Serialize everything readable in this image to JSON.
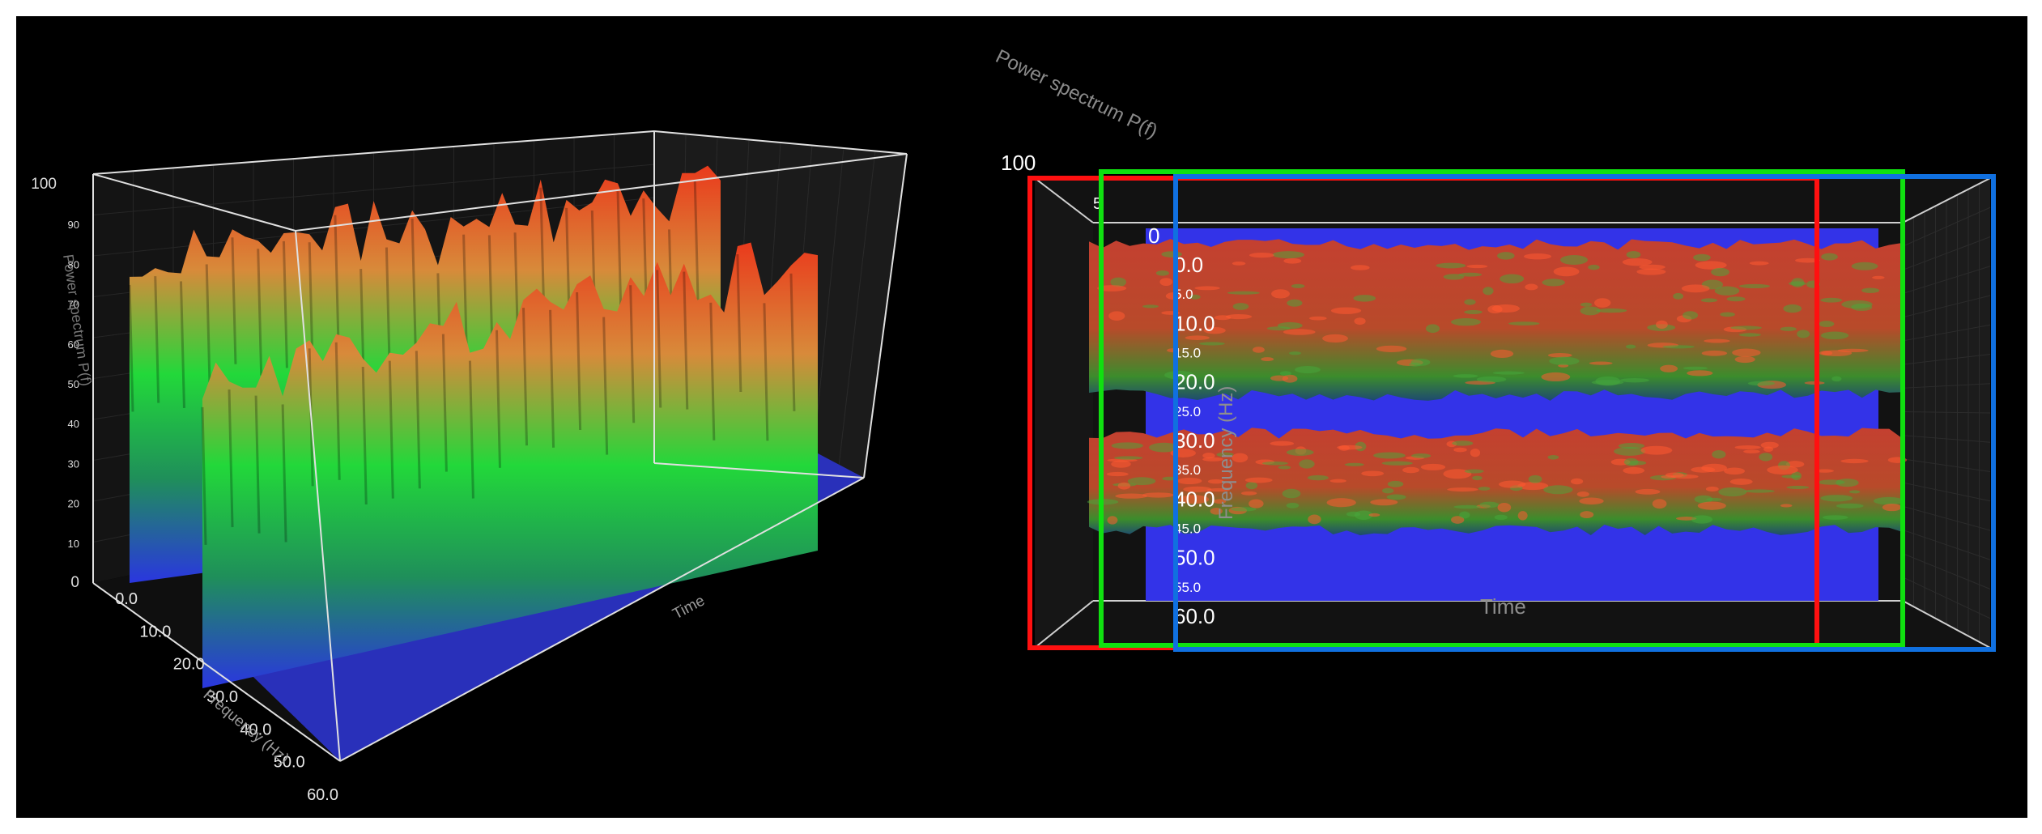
{
  "chart_data": [
    {
      "type": "surface3d",
      "view": "perspective",
      "zlabel": "Power spectrum P(f)",
      "ylabel": "Frequency (Hz)",
      "xlabel": "Time",
      "z_ticks": [
        "0",
        "10",
        "20",
        "30",
        "40",
        "50",
        "60",
        "70",
        "80",
        "90",
        "100"
      ],
      "y_ticks": [
        "0.0",
        "10.0",
        "20.0",
        "30.0",
        "40.0",
        "50.0",
        "60.0"
      ],
      "zlim": [
        0,
        100
      ],
      "ylim": [
        0,
        60
      ],
      "grid": true,
      "colormap": [
        "#2a36e0",
        "#22e03a",
        "#e8b040",
        "#ea3a1c"
      ],
      "bands": [
        {
          "freq_range": [
            0,
            20
          ],
          "level": 65
        },
        {
          "freq_range": [
            25,
            45
          ],
          "level": 55
        }
      ]
    },
    {
      "type": "surface3d",
      "view": "top",
      "zlabel": "Power spectrum P(f)",
      "ylabel": "Frequency (Hz)",
      "xlabel": "Time",
      "z_ticks": [
        "100",
        "5",
        "0"
      ],
      "y_ticks": [
        "0.0",
        "5.0",
        "10.0",
        "15.0",
        "20.0",
        "25.0",
        "30.0",
        "35.0",
        "40.0",
        "45.0",
        "50.0",
        "55.0",
        "60.0"
      ],
      "ylim": [
        0,
        60
      ],
      "grid": true,
      "bands": [
        {
          "freq_range": [
            0,
            20
          ],
          "level": 65
        },
        {
          "freq_range": [
            25,
            45
          ],
          "level": 55
        }
      ],
      "highlight_boxes": [
        {
          "color": "#ff1010"
        },
        {
          "color": "#10e010"
        },
        {
          "color": "#1070e0"
        }
      ]
    }
  ]
}
